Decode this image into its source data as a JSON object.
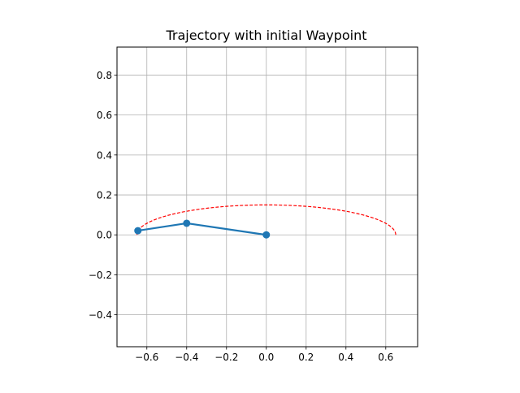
{
  "figure": {
    "background": "#ffffff",
    "title": "Trajectory with initial Waypoint"
  },
  "chart_data": {
    "type": "line",
    "title": "Trajectory with initial Waypoint",
    "xlabel": "",
    "ylabel": "",
    "xlim": [
      -0.75,
      0.76
    ],
    "ylim": [
      -0.56,
      0.94
    ],
    "aspect": "equal",
    "grid": true,
    "x_ticks": [
      -0.6,
      -0.4,
      -0.2,
      0.0,
      0.2,
      0.4,
      0.6
    ],
    "x_tick_labels": [
      "−0.6",
      "−0.4",
      "−0.2",
      "0.0",
      "0.2",
      "0.4",
      "0.6"
    ],
    "y_ticks": [
      -0.4,
      -0.2,
      0.0,
      0.2,
      0.4,
      0.6,
      0.8
    ],
    "y_tick_labels": [
      "−0.4",
      "−0.2",
      "0.0",
      "0.2",
      "0.4",
      "0.6",
      "0.8"
    ],
    "series": [
      {
        "style": "solid line with circle markers",
        "color": "#1f77b4",
        "points": [
          {
            "x": 0.0,
            "y": 0.0
          },
          {
            "x": -0.4,
            "y": 0.058
          },
          {
            "x": -0.645,
            "y": 0.021
          }
        ]
      },
      {
        "style": "dashed arc",
        "color": "#ff0000",
        "arc": {
          "center_x": 0.0,
          "center_y": 0.0,
          "radius_x": 0.65,
          "radius_y": 0.15,
          "from_angle_deg": 0,
          "to_angle_deg": 180
        }
      }
    ],
    "colors": {
      "axes_edge": "#000000",
      "grid": "#b0b0b0"
    }
  }
}
